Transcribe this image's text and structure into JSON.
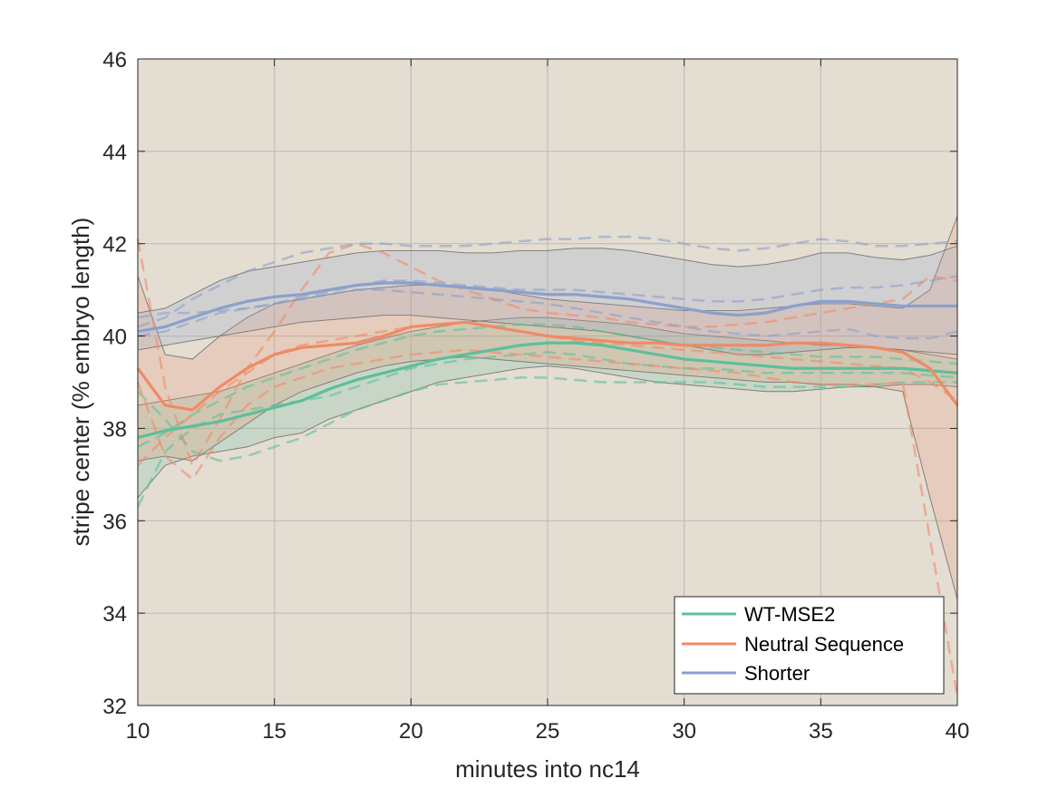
{
  "chart_data": {
    "type": "line",
    "title": "",
    "xlabel": "minutes into nc14",
    "ylabel": "stripe center (% embryo length)",
    "xlim": [
      10,
      40
    ],
    "ylim": [
      32,
      46
    ],
    "xticks": [
      10,
      15,
      20,
      25,
      30,
      35,
      40
    ],
    "yticks": [
      32,
      34,
      36,
      38,
      40,
      42,
      44,
      46
    ],
    "grid": true,
    "legend_position": "bottom-right",
    "background_color": "#e3ddd2",
    "series": [
      {
        "name": "WT-MSE2",
        "color": "#5dbf9a",
        "x": [
          10,
          11,
          12,
          13,
          14,
          15,
          16,
          17,
          18,
          19,
          20,
          21,
          22,
          23,
          24,
          25,
          26,
          27,
          28,
          29,
          30,
          31,
          32,
          33,
          34,
          35,
          36,
          37,
          38,
          39,
          40
        ],
        "mean": [
          37.8,
          37.95,
          38.05,
          38.15,
          38.3,
          38.45,
          38.6,
          38.85,
          39.05,
          39.2,
          39.35,
          39.5,
          39.6,
          39.7,
          39.8,
          39.85,
          39.85,
          39.8,
          39.7,
          39.6,
          39.5,
          39.45,
          39.4,
          39.35,
          39.3,
          39.3,
          39.3,
          39.3,
          39.3,
          39.25,
          39.2
        ],
        "lower": [
          36.5,
          37.2,
          37.4,
          37.5,
          37.6,
          37.8,
          37.9,
          38.2,
          38.4,
          38.6,
          38.8,
          39.0,
          39.1,
          39.2,
          39.3,
          39.35,
          39.3,
          39.2,
          39.1,
          39.0,
          38.95,
          38.9,
          38.85,
          38.8,
          38.8,
          38.85,
          38.9,
          38.9,
          38.95,
          38.95,
          38.9
        ],
        "upper": [
          38.5,
          38.6,
          38.7,
          38.8,
          39.0,
          39.2,
          39.4,
          39.6,
          39.8,
          39.95,
          40.1,
          40.2,
          40.3,
          40.35,
          40.4,
          40.4,
          40.35,
          40.3,
          40.25,
          40.15,
          40.05,
          40.0,
          39.95,
          39.9,
          39.85,
          39.8,
          39.8,
          39.75,
          39.7,
          39.6,
          39.5
        ],
        "replicates": [
          [
            36.3,
            37.5,
            38.0,
            38.3,
            38.4,
            38.5,
            38.6,
            38.7,
            38.9,
            39.1,
            39.3,
            39.4,
            39.5,
            39.55,
            39.6,
            39.65,
            39.6,
            39.5,
            39.4,
            39.35,
            39.3,
            39.3,
            39.25,
            39.2,
            39.2,
            39.2,
            39.2,
            39.2,
            39.2,
            39.15,
            39.1
          ],
          [
            38.8,
            38.2,
            37.5,
            37.3,
            37.4,
            37.6,
            37.8,
            38.1,
            38.4,
            38.6,
            38.8,
            38.95,
            39.0,
            39.05,
            39.1,
            39.1,
            39.05,
            39.0,
            39.0,
            39.0,
            39.0,
            39.0,
            38.95,
            38.9,
            38.9,
            38.9,
            38.9,
            38.95,
            39.0,
            39.0,
            39.0
          ],
          [
            37.6,
            37.9,
            38.3,
            38.6,
            38.9,
            39.1,
            39.3,
            39.5,
            39.7,
            39.85,
            40.0,
            40.1,
            40.15,
            40.2,
            40.25,
            40.25,
            40.2,
            40.1,
            40.0,
            39.9,
            39.8,
            39.75,
            39.7,
            39.65,
            39.6,
            39.55,
            39.55,
            39.55,
            39.5,
            39.45,
            39.4
          ]
        ]
      },
      {
        "name": "Neutral Sequence",
        "color": "#f08a65",
        "x": [
          10,
          11,
          12,
          13,
          14,
          15,
          16,
          17,
          18,
          19,
          20,
          21,
          22,
          23,
          24,
          25,
          26,
          27,
          28,
          29,
          30,
          31,
          32,
          33,
          34,
          35,
          36,
          37,
          38,
          39,
          40
        ],
        "mean": [
          39.3,
          38.5,
          38.4,
          38.9,
          39.3,
          39.6,
          39.75,
          39.8,
          39.85,
          40.0,
          40.2,
          40.25,
          40.3,
          40.2,
          40.1,
          40.0,
          39.95,
          39.9,
          39.85,
          39.85,
          39.8,
          39.8,
          39.8,
          39.8,
          39.85,
          39.85,
          39.8,
          39.75,
          39.65,
          39.3,
          38.5
        ],
        "lower": [
          37.3,
          37.4,
          37.3,
          37.7,
          38.1,
          38.5,
          38.8,
          39.0,
          39.2,
          39.35,
          39.45,
          39.5,
          39.55,
          39.5,
          39.45,
          39.4,
          39.35,
          39.3,
          39.25,
          39.2,
          39.15,
          39.1,
          39.05,
          39.0,
          39.0,
          38.95,
          38.95,
          38.9,
          38.8,
          36.5,
          34.3
        ],
        "upper": [
          41.3,
          39.6,
          39.5,
          40.0,
          40.4,
          40.7,
          40.8,
          40.9,
          41.0,
          41.05,
          41.1,
          41.1,
          41.05,
          41.0,
          40.9,
          40.8,
          40.75,
          40.7,
          40.65,
          40.6,
          40.55,
          40.55,
          40.55,
          40.6,
          40.65,
          40.7,
          40.7,
          40.65,
          40.6,
          41.0,
          42.6
        ],
        "replicates": [
          [
            42.1,
            38.9,
            37.2,
            38.2,
            39.3,
            40.1,
            41.0,
            41.8,
            42.0,
            41.8,
            41.5,
            41.2,
            41.0,
            40.8,
            40.6,
            40.5,
            40.45,
            40.4,
            40.3,
            40.25,
            40.2,
            40.2,
            40.25,
            40.3,
            40.4,
            40.5,
            40.6,
            40.7,
            40.8,
            41.3,
            41.2
          ],
          [
            37.2,
            37.8,
            38.3,
            38.8,
            39.2,
            39.6,
            39.8,
            39.9,
            40.0,
            40.1,
            40.2,
            40.25,
            40.3,
            40.2,
            40.1,
            40.0,
            39.9,
            39.85,
            39.8,
            39.75,
            39.7,
            39.65,
            39.6,
            39.55,
            39.5,
            39.45,
            39.4,
            39.35,
            39.3,
            39.0,
            38.6
          ],
          [
            39.0,
            37.4,
            36.9,
            37.8,
            38.5,
            38.9,
            39.1,
            39.3,
            39.4,
            39.5,
            39.6,
            39.65,
            39.7,
            39.65,
            39.6,
            39.55,
            39.5,
            39.45,
            39.4,
            39.35,
            39.3,
            39.25,
            39.2,
            39.1,
            39.0,
            38.95,
            38.95,
            38.95,
            39.0,
            35.6,
            32.2
          ]
        ]
      },
      {
        "name": "Shorter",
        "color": "#8ba0cb",
        "x": [
          10,
          11,
          12,
          13,
          14,
          15,
          16,
          17,
          18,
          19,
          20,
          21,
          22,
          23,
          24,
          25,
          26,
          27,
          28,
          29,
          30,
          31,
          32,
          33,
          34,
          35,
          36,
          37,
          38,
          39,
          40
        ],
        "mean": [
          40.1,
          40.2,
          40.4,
          40.6,
          40.75,
          40.85,
          40.9,
          41.0,
          41.1,
          41.15,
          41.15,
          41.1,
          41.05,
          41.0,
          40.95,
          40.9,
          40.9,
          40.85,
          40.8,
          40.7,
          40.6,
          40.5,
          40.45,
          40.5,
          40.65,
          40.75,
          40.75,
          40.7,
          40.65,
          40.65,
          40.65
        ],
        "lower": [
          39.7,
          39.8,
          39.9,
          40.0,
          40.1,
          40.2,
          40.3,
          40.35,
          40.4,
          40.45,
          40.45,
          40.4,
          40.35,
          40.3,
          40.25,
          40.2,
          40.15,
          40.1,
          40.0,
          39.9,
          39.8,
          39.7,
          39.6,
          39.6,
          39.65,
          39.7,
          39.75,
          39.75,
          39.7,
          39.65,
          39.6
        ],
        "upper": [
          40.5,
          40.6,
          40.9,
          41.2,
          41.4,
          41.5,
          41.6,
          41.7,
          41.8,
          41.85,
          41.85,
          41.85,
          41.8,
          41.8,
          41.85,
          41.85,
          41.9,
          41.9,
          41.85,
          41.75,
          41.65,
          41.55,
          41.5,
          41.55,
          41.65,
          41.8,
          41.8,
          41.7,
          41.65,
          41.75,
          41.95
        ],
        "replicates": [
          [
            40.2,
            40.4,
            40.8,
            41.1,
            41.4,
            41.6,
            41.8,
            41.9,
            42.0,
            42.0,
            41.95,
            41.95,
            41.95,
            42.0,
            42.05,
            42.1,
            42.1,
            42.15,
            42.15,
            42.1,
            42.0,
            41.9,
            41.85,
            41.9,
            42.0,
            42.1,
            42.05,
            41.95,
            41.95,
            42.0,
            42.05
          ],
          [
            40.0,
            40.1,
            40.3,
            40.5,
            40.6,
            40.7,
            40.8,
            40.9,
            41.0,
            41.0,
            40.95,
            40.9,
            40.85,
            40.8,
            40.75,
            40.7,
            40.6,
            40.5,
            40.4,
            40.3,
            40.2,
            40.1,
            40.05,
            40.0,
            40.05,
            40.1,
            40.15,
            40.0,
            39.95,
            39.95,
            40.1
          ],
          [
            40.4,
            40.5,
            40.5,
            40.55,
            40.6,
            40.7,
            40.85,
            40.95,
            41.1,
            41.2,
            41.2,
            41.15,
            41.1,
            41.05,
            41.0,
            41.0,
            41.0,
            40.95,
            40.9,
            40.85,
            40.8,
            40.75,
            40.75,
            40.8,
            40.9,
            41.0,
            41.05,
            41.05,
            41.1,
            41.2,
            41.3
          ]
        ]
      }
    ]
  }
}
